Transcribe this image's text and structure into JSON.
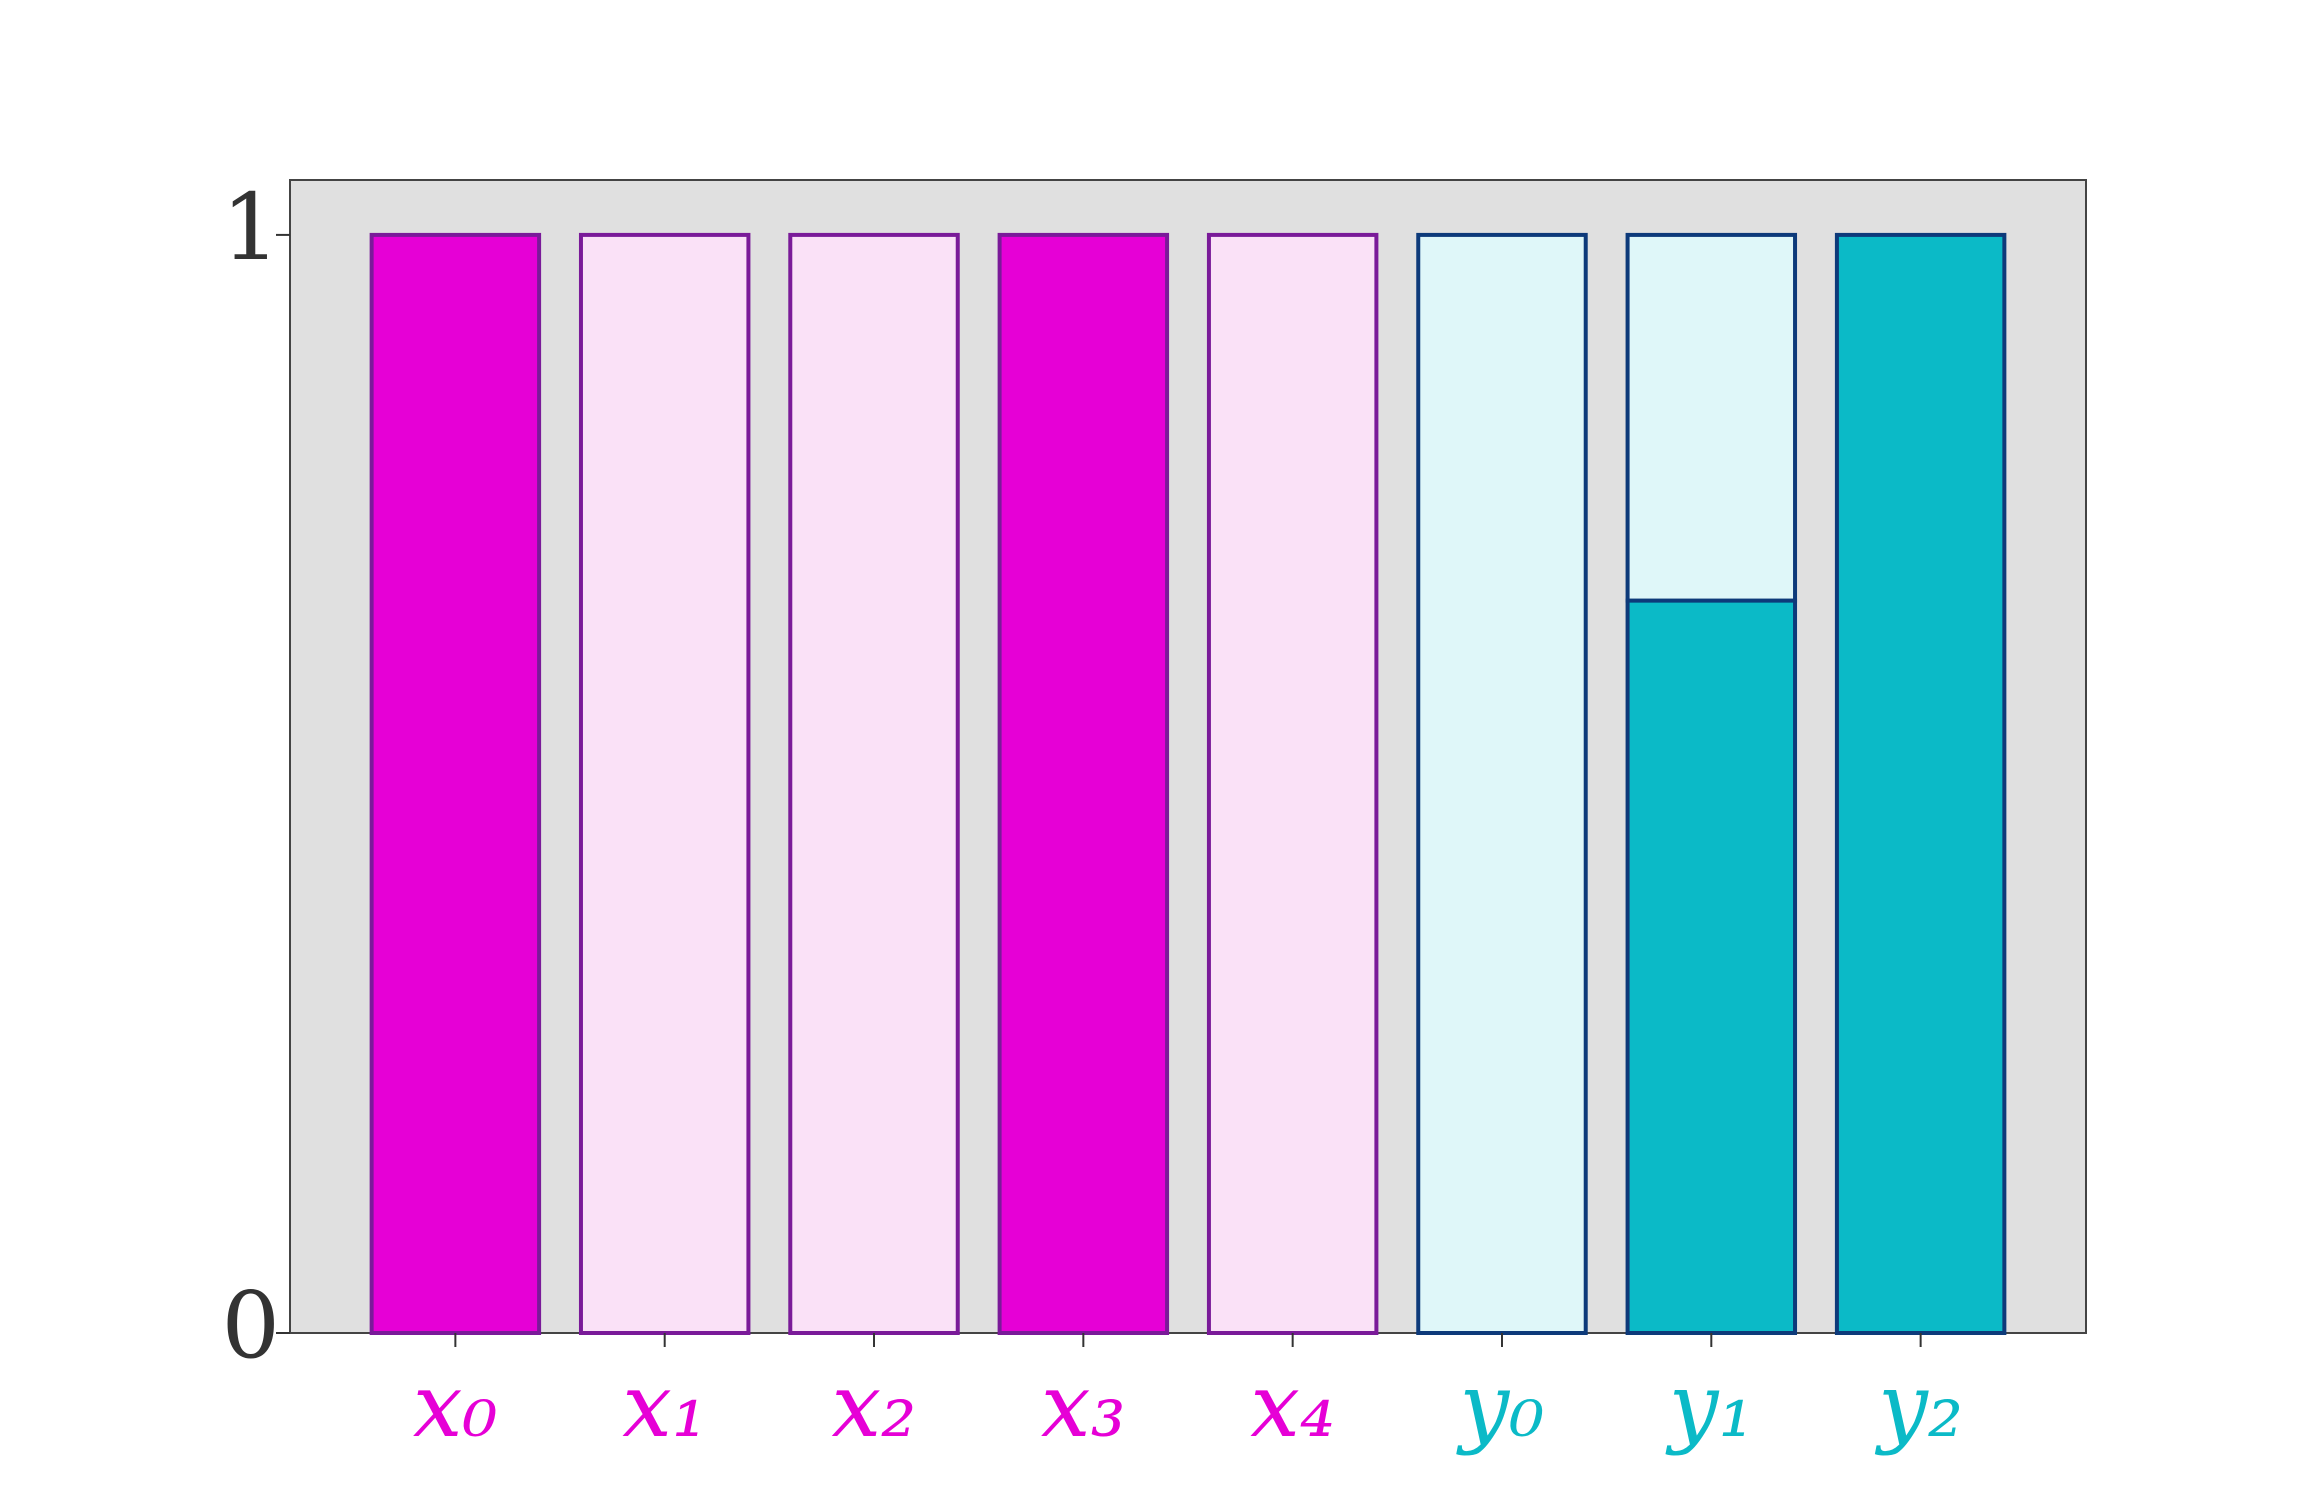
{
  "chart_data": {
    "type": "bar",
    "stacked": true,
    "categories": [
      "x₀",
      "x₁",
      "x₂",
      "x₃",
      "x₄",
      "y₀",
      "y₁",
      "y₂"
    ],
    "label_colors": [
      "#e600d6",
      "#e600d6",
      "#e600d6",
      "#e600d6",
      "#e600d6",
      "#0bbac7",
      "#0bbac7",
      "#0bbac7"
    ],
    "series": [
      {
        "colors": [
          "#e600d6",
          "#e600d6",
          "#e600d6",
          "#e600d6",
          "#e600d6",
          "#0bbac7",
          "#0bbac7",
          "#0bbac7"
        ],
        "edge_colors": [
          "#7a1a99",
          "#7a1a99",
          "#7a1a99",
          "#7a1a99",
          "#7a1a99",
          "#0d3a7a",
          "#0d3a7a",
          "#0d3a7a"
        ],
        "values": [
          1,
          0,
          0,
          1,
          0,
          0,
          0.667,
          1
        ]
      },
      {
        "colors": [
          "#fae1f7",
          "#fae1f7",
          "#fae1f7",
          "#fae1f7",
          "#fae1f7",
          "#dff7f9",
          "#dff7f9",
          "#dff7f9"
        ],
        "edge_colors": [
          "#7a1a99",
          "#7a1a99",
          "#7a1a99",
          "#7a1a99",
          "#7a1a99",
          "#0d3a7a",
          "#0d3a7a",
          "#0d3a7a"
        ],
        "values": [
          0,
          1,
          1,
          0,
          1,
          1,
          0.333,
          0
        ]
      }
    ],
    "ylim": [
      0,
      1.05
    ],
    "yticks": [
      0,
      1
    ],
    "background": "#e0e0e0"
  }
}
